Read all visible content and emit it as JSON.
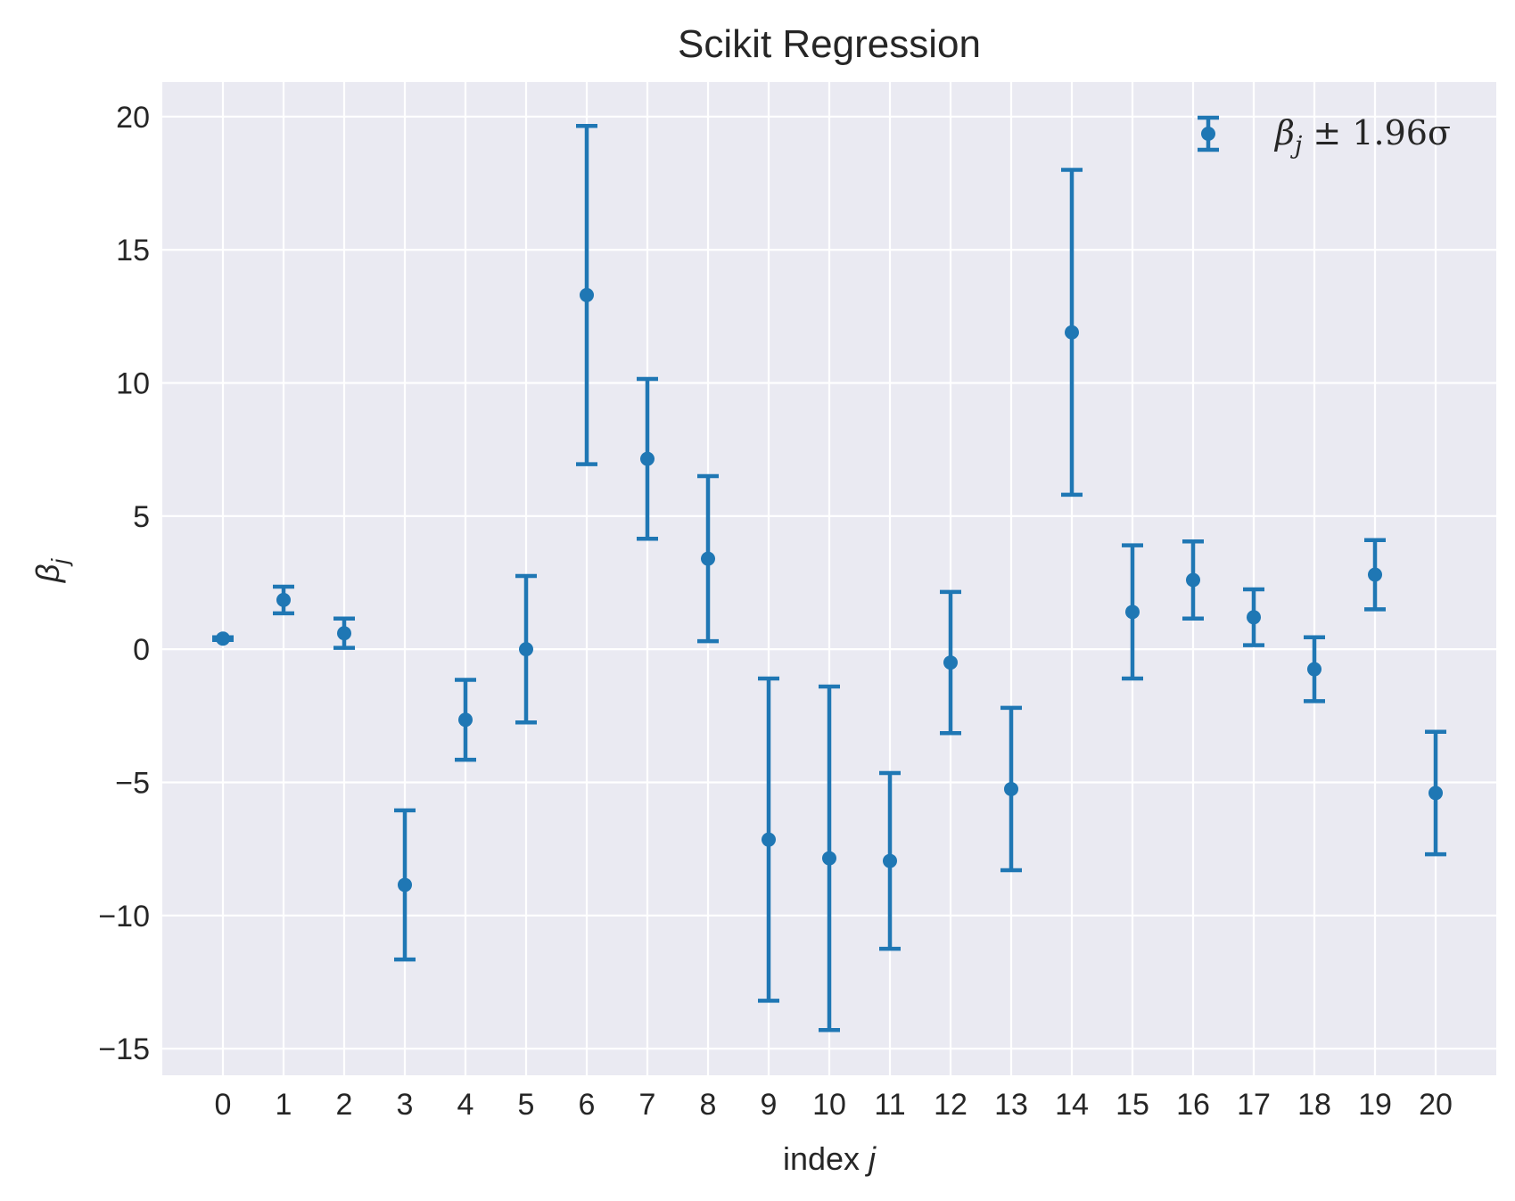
{
  "chart_data": {
    "type": "scatter",
    "title": "Scikit Regression",
    "xlabel_text": "index ",
    "xlabel_var": "j",
    "ylabel_symbol": "β",
    "ylabel_sub": "j",
    "legend": {
      "symbol": "β",
      "sub": "j",
      "rest": " ± 1.96σ",
      "placement": "top-right"
    },
    "grid": true,
    "style": "seaborn-darkgrid",
    "colors": {
      "series": "#1f77b4",
      "background": "#eaeaf2",
      "grid": "#ffffff",
      "text": "#262626"
    },
    "xlim": [
      -1,
      21
    ],
    "ylim": [
      -16,
      21.3
    ],
    "xticks": [
      0,
      1,
      2,
      3,
      4,
      5,
      6,
      7,
      8,
      9,
      10,
      11,
      12,
      13,
      14,
      15,
      16,
      17,
      18,
      19,
      20
    ],
    "yticks": [
      -15,
      -10,
      -5,
      0,
      5,
      10,
      15,
      20
    ],
    "ytick_labels": [
      "−15",
      "−10",
      "−5",
      "0",
      "5",
      "10",
      "15",
      "20"
    ],
    "series": [
      {
        "x": [
          0,
          1,
          2,
          3,
          4,
          5,
          6,
          7,
          8,
          9,
          10,
          11,
          12,
          13,
          14,
          15,
          16,
          17,
          18,
          19,
          20
        ],
        "y": [
          0.4,
          1.85,
          0.6,
          -8.85,
          -2.65,
          0.0,
          13.3,
          7.15,
          3.4,
          -7.15,
          -7.85,
          -7.95,
          -0.5,
          -5.25,
          11.9,
          1.4,
          2.6,
          1.2,
          -0.75,
          2.8,
          -5.4
        ],
        "err": [
          0.05,
          0.5,
          0.55,
          2.8,
          1.5,
          2.75,
          6.35,
          3.0,
          3.1,
          6.05,
          6.45,
          3.3,
          2.65,
          3.05,
          6.1,
          2.5,
          1.45,
          1.05,
          1.2,
          1.3,
          2.3
        ]
      }
    ]
  }
}
